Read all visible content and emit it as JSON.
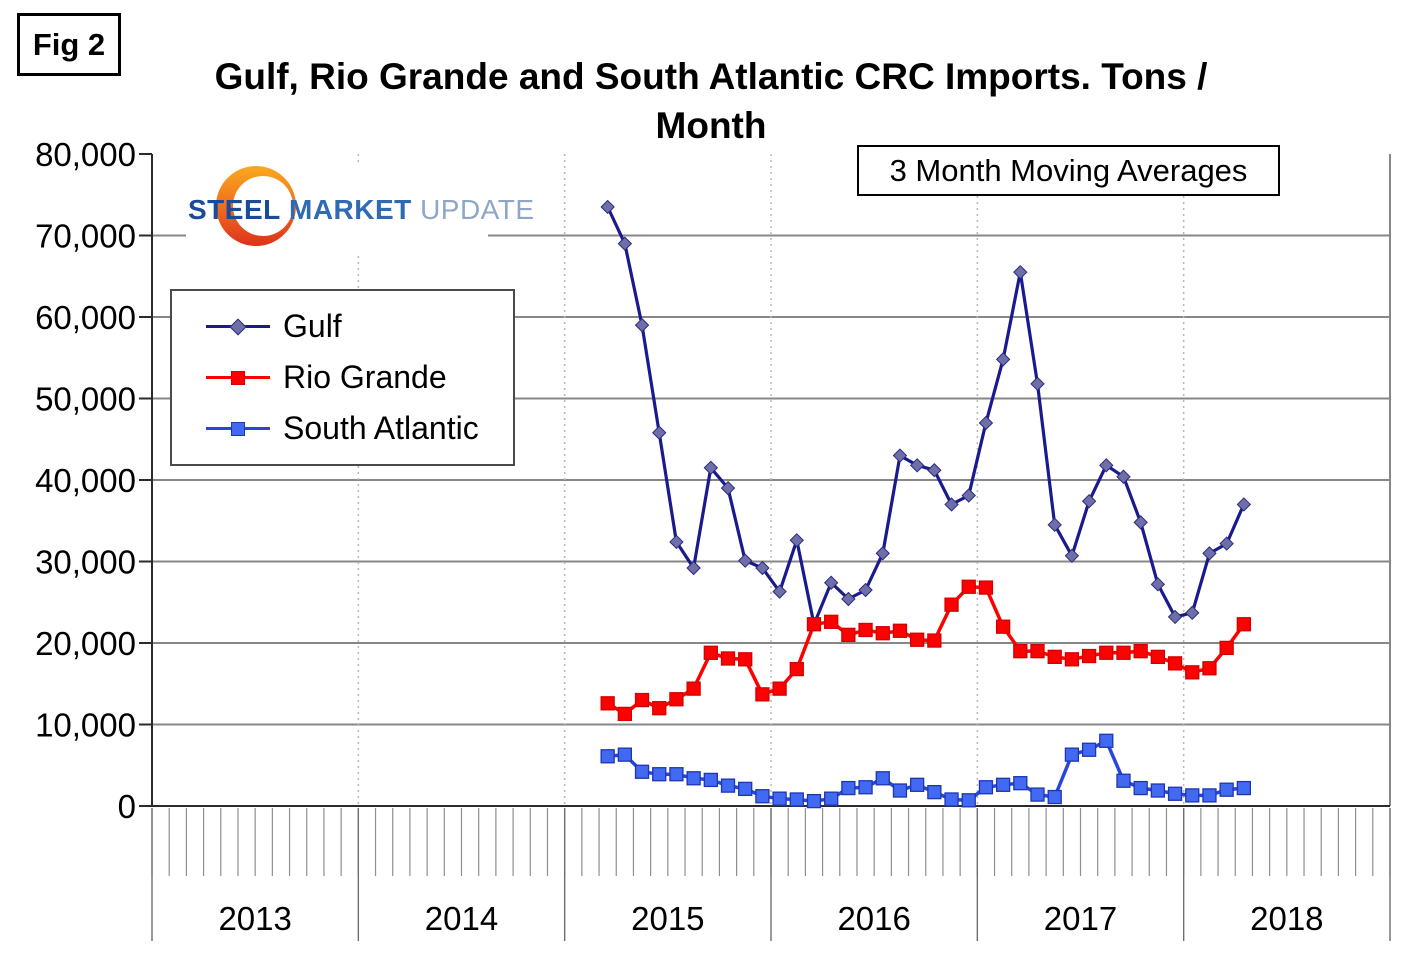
{
  "fig_label": "Fig 2",
  "title_line1": "Gulf, Rio Grande and South Atlantic CRC Imports. Tons /",
  "title_line2": "Month",
  "annotation_box": "3 Month Moving Averages",
  "logo": {
    "word1": "STEEL",
    "word2": "MARKET",
    "word3": "UPDATE"
  },
  "legend": [
    {
      "label": "Gulf"
    },
    {
      "label": "Rio Grande"
    },
    {
      "label": "South Atlantic"
    }
  ],
  "chart_data": {
    "type": "line",
    "title": "Gulf, Rio Grande and South Atlantic CRC Imports. Tons / Month",
    "annotation": "3 Month Moving Averages",
    "legend_position": "upper-left",
    "grid": {
      "horizontal": "solid",
      "vertical": "dotted-at-year-boundaries"
    },
    "x_axis": {
      "years": [
        "2013",
        "2014",
        "2015",
        "2016",
        "2017",
        "2018"
      ],
      "first_year": 2013,
      "total_months_shown": 72,
      "minor_ticks": "monthly"
    },
    "y_axis": {
      "min": 0,
      "max": 80000,
      "tick_step": 10000,
      "tick_labels": [
        "80,000",
        "70,000",
        "60,000",
        "50,000",
        "40,000",
        "30,000",
        "20,000",
        "10,000",
        "0"
      ]
    },
    "start_month": "2015-03",
    "frequency": "monthly",
    "series": [
      {
        "name": "Gulf",
        "color": "#1A1A8F",
        "marker": "diamond",
        "marker_color": "#6E6EA8",
        "marker_edge": "#2A2A80",
        "values": [
          73500,
          69000,
          59000,
          45800,
          32400,
          29200,
          41500,
          39000,
          30100,
          29200,
          26300,
          32600,
          22300,
          27400,
          25400,
          26500,
          31000,
          43000,
          41800,
          41200,
          37000,
          38100,
          47000,
          54800,
          65500,
          51800,
          34500,
          30700,
          37400,
          41800,
          40400,
          34800,
          27200,
          23200,
          23700,
          31000,
          32200,
          37000
        ]
      },
      {
        "name": "Rio Grande",
        "color": "#FF0000",
        "marker": "square",
        "marker_color": "#FF0000",
        "marker_edge": "#D40000",
        "values": [
          12600,
          11300,
          13000,
          12000,
          13100,
          14400,
          18800,
          18100,
          18000,
          13700,
          14400,
          16800,
          22300,
          22600,
          21000,
          21600,
          21200,
          21500,
          20400,
          20300,
          24700,
          26900,
          26800,
          22000,
          19000,
          19000,
          18300,
          18000,
          18400,
          18800,
          18800,
          19000,
          18300,
          17500,
          16400,
          16900,
          19400,
          22300
        ]
      },
      {
        "name": "South Atlantic",
        "color": "#2845DC",
        "marker": "square",
        "marker_color": "#4169F1",
        "marker_edge": "#1E36B0",
        "values": [
          6100,
          6300,
          4200,
          3900,
          3900,
          3400,
          3200,
          2500,
          2100,
          1200,
          900,
          800,
          600,
          900,
          2200,
          2300,
          3400,
          1900,
          2600,
          1700,
          800,
          700,
          2300,
          2600,
          2800,
          1400,
          1100,
          6300,
          6900,
          8000,
          3100,
          2200,
          1900,
          1500,
          1300,
          1300,
          2000,
          2200
        ]
      }
    ]
  }
}
